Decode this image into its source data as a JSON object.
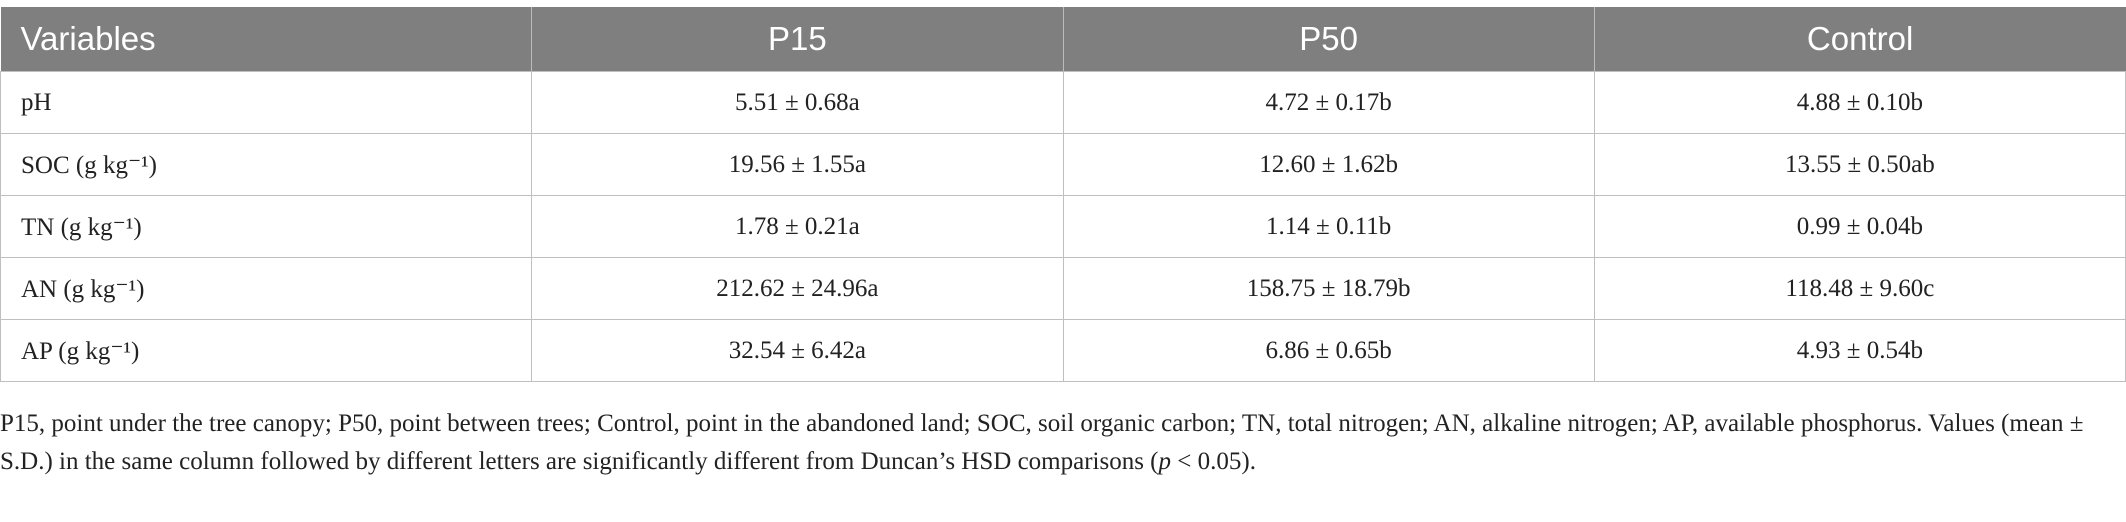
{
  "table": {
    "header": [
      "Variables",
      "P15",
      "P50",
      "Control"
    ],
    "rows": [
      [
        "pH",
        "5.51 ± 0.68a",
        "4.72 ± 0.17b",
        "4.88 ± 0.10b"
      ],
      [
        "SOC (g kg⁻¹)",
        "19.56 ± 1.55a",
        "12.60 ± 1.62b",
        "13.55 ± 0.50ab"
      ],
      [
        "TN (g kg⁻¹)",
        "1.78 ± 0.21a",
        "1.14 ± 0.11b",
        "0.99 ± 0.04b"
      ],
      [
        "AN (g kg⁻¹)",
        "212.62 ± 24.96a",
        "158.75 ± 18.79b",
        "118.48 ± 9.60c"
      ],
      [
        "AP (g kg⁻¹)",
        "32.54 ± 6.42a",
        "6.86 ± 0.65b",
        "4.93 ± 0.54b"
      ]
    ]
  },
  "footnote": [
    "P15, point under the tree canopy; P50, point between trees; Control, point in the abandoned land; SOC, soil organic carbon; TN, total nitrogen; AN, alkaline nitrogen; AP, available phosphorus. Values (mean ± S.D.) in the same column followed by different letters are significantly different from Duncan’s HSD comparisons (",
    "p",
    " < 0.05)."
  ]
}
